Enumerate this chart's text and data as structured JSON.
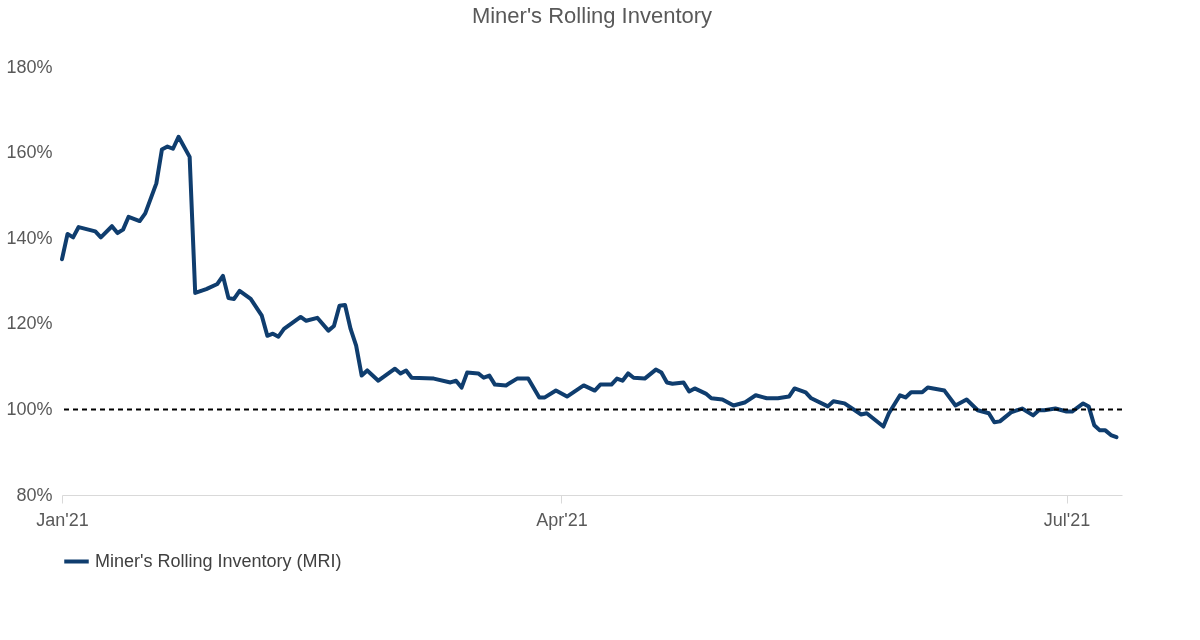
{
  "chart_data": {
    "type": "line",
    "title": "Miner's Rolling Inventory",
    "x": [
      "2021-01-01",
      "2021-01-02",
      "2021-01-03",
      "2021-01-04",
      "2021-01-07",
      "2021-01-08",
      "2021-01-10",
      "2021-01-11",
      "2021-01-12",
      "2021-01-13",
      "2021-01-15",
      "2021-01-16",
      "2021-01-18",
      "2021-01-19",
      "2021-01-20",
      "2021-01-21",
      "2021-01-22",
      "2021-01-24",
      "2021-01-25",
      "2021-01-27",
      "2021-01-29",
      "2021-01-30",
      "2021-01-31",
      "2021-02-01",
      "2021-02-02",
      "2021-02-04",
      "2021-02-06",
      "2021-02-07",
      "2021-02-08",
      "2021-02-09",
      "2021-02-10",
      "2021-02-13",
      "2021-02-14",
      "2021-02-16",
      "2021-02-18",
      "2021-02-19",
      "2021-02-20",
      "2021-02-21",
      "2021-02-22",
      "2021-02-23",
      "2021-02-24",
      "2021-02-25",
      "2021-02-27",
      "2021-03-02",
      "2021-03-03",
      "2021-03-04",
      "2021-03-05",
      "2021-03-09",
      "2021-03-12",
      "2021-03-13",
      "2021-03-14",
      "2021-03-15",
      "2021-03-17",
      "2021-03-18",
      "2021-03-19",
      "2021-03-20",
      "2021-03-22",
      "2021-03-24",
      "2021-03-26",
      "2021-03-28",
      "2021-03-29",
      "2021-03-31",
      "2021-04-02",
      "2021-04-05",
      "2021-04-07",
      "2021-04-08",
      "2021-04-10",
      "2021-04-11",
      "2021-04-12",
      "2021-04-13",
      "2021-04-14",
      "2021-04-16",
      "2021-04-18",
      "2021-04-19",
      "2021-04-20",
      "2021-04-21",
      "2021-04-23",
      "2021-04-24",
      "2021-04-25",
      "2021-04-27",
      "2021-04-28",
      "2021-04-30",
      "2021-05-02",
      "2021-05-04",
      "2021-05-06",
      "2021-05-08",
      "2021-05-10",
      "2021-05-12",
      "2021-05-13",
      "2021-05-15",
      "2021-05-16",
      "2021-05-19",
      "2021-05-20",
      "2021-05-22",
      "2021-05-25",
      "2021-05-26",
      "2021-05-29",
      "2021-05-30",
      "2021-06-01",
      "2021-06-02",
      "2021-06-03",
      "2021-06-05",
      "2021-06-06",
      "2021-06-09",
      "2021-06-11",
      "2021-06-13",
      "2021-06-15",
      "2021-06-17",
      "2021-06-18",
      "2021-06-19",
      "2021-06-21",
      "2021-06-23",
      "2021-06-25",
      "2021-06-26",
      "2021-06-27",
      "2021-06-29",
      "2021-07-01",
      "2021-07-02",
      "2021-07-04",
      "2021-07-05",
      "2021-07-06",
      "2021-07-07",
      "2021-07-08",
      "2021-07-09",
      "2021-07-10"
    ],
    "series": [
      {
        "name": "Miner's Rolling Inventory (MRI)",
        "color": "#0f3d6e",
        "values": [
          135.1,
          141,
          140.2,
          142.6,
          141.6,
          140.2,
          142.8,
          141.2,
          142,
          145,
          144,
          145.8,
          152.8,
          160.7,
          161.4,
          160.9,
          163.7,
          159,
          127.2,
          128.1,
          129.3,
          131.2,
          126,
          125.8,
          127.7,
          125.8,
          121.9,
          117.2,
          117.7,
          117,
          118.8,
          121.6,
          120.7,
          121.4,
          118.4,
          119.5,
          124.2,
          124.4,
          118.8,
          114.9,
          107.9,
          109.1,
          106.7,
          109.5,
          108.4,
          109.1,
          107.4,
          107.2,
          106.3,
          106.7,
          105.1,
          108.6,
          108.4,
          107.4,
          107.9,
          105.8,
          105.6,
          107.2,
          107.2,
          102.8,
          102.8,
          104.4,
          103,
          105.6,
          104.4,
          105.8,
          105.8,
          107.2,
          106.7,
          108.4,
          107.4,
          107.2,
          109.3,
          108.6,
          106.3,
          106,
          106.3,
          104.2,
          104.9,
          103.7,
          102.6,
          102.3,
          100.9,
          101.6,
          103.3,
          102.6,
          102.6,
          103,
          104.9,
          104,
          102.6,
          100.7,
          101.9,
          101.4,
          98.8,
          99.1,
          96,
          99.1,
          103.3,
          102.8,
          104,
          104,
          105.1,
          104.4,
          100.9,
          102.3,
          99.8,
          99.1,
          97,
          97.2,
          99.3,
          100.2,
          98.6,
          99.8,
          99.8,
          100.2,
          99.5,
          99.5,
          101.4,
          100.7,
          96.3,
          95.1,
          95.1,
          94,
          93.5
        ]
      }
    ],
    "xlim": [
      "2021-01-01",
      "2021-07-11"
    ],
    "xticks": [
      {
        "value": "2021-01-01",
        "label": "Jan'21"
      },
      {
        "value": "2021-04-01",
        "label": "Apr'21"
      },
      {
        "value": "2021-07-01",
        "label": "Jul'21"
      }
    ],
    "ylim": [
      80,
      180
    ],
    "yticks": [
      {
        "value": 80,
        "label": "80%"
      },
      {
        "value": 100,
        "label": "100%"
      },
      {
        "value": 120,
        "label": "120%"
      },
      {
        "value": 140,
        "label": "140%"
      },
      {
        "value": 160,
        "label": "160%"
      },
      {
        "value": 180,
        "label": "180%"
      }
    ],
    "ref_lines": [
      {
        "axis": "y",
        "value": 100,
        "color": "#000000",
        "line_style": "dashed"
      }
    ],
    "grid": false,
    "legend": "bottom",
    "line_style": "solid",
    "marker": "none"
  }
}
